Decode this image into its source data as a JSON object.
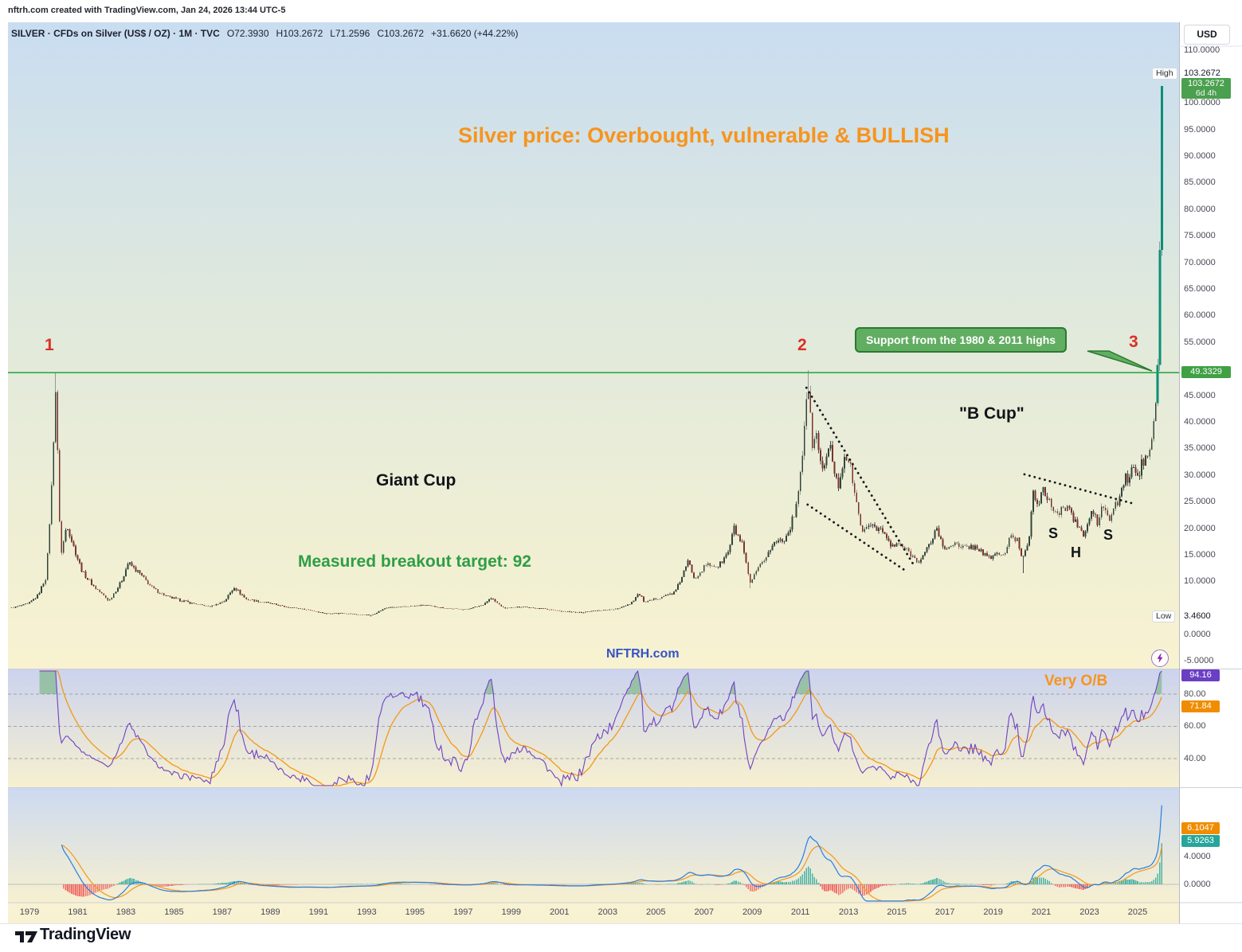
{
  "page": {
    "top_note": "nftrh.com created with TradingView.com, Jan 24, 2026 13:44 UTC-5",
    "watermark": "NFTRH.com",
    "logo_text": "TradingView"
  },
  "header": {
    "symbol_line": "SILVER · CFDs on Silver (US$ / OZ) · 1M · TVC",
    "ohlc": {
      "open": "O72.3930",
      "high": "H103.2672",
      "low": "L71.2596",
      "close": "C103.2672",
      "change": "+31.6620 (+44.22%)"
    }
  },
  "annotations": {
    "title": "Silver price: Overbought, vulnerable & BULLISH",
    "peak_1": "1",
    "peak_2": "2",
    "peak_3": "3",
    "callout": "Support from the 1980 & 2011 highs",
    "b_cup": "\"B Cup\"",
    "giant_cup": "Giant Cup",
    "target": "Measured breakout target: 92",
    "shs_left": "S",
    "shs_head": "H",
    "shs_right": "S",
    "very_ob": "Very O/B"
  },
  "price_axis": {
    "currency_button": "USD",
    "high_label": "High",
    "high_value": "103.2672",
    "last_price": "103.2672",
    "countdown": "6d 4h",
    "support_badge": "49.3329",
    "low_label": "Low",
    "low_value": "3.4600",
    "badge_color": "#4aa04e",
    "ticks": [
      {
        "value": 110,
        "label": "110.0000"
      },
      {
        "value": 100,
        "label": "100.0000"
      },
      {
        "value": 95,
        "label": "95.0000"
      },
      {
        "value": 90,
        "label": "90.0000"
      },
      {
        "value": 85,
        "label": "85.0000"
      },
      {
        "value": 80,
        "label": "80.0000"
      },
      {
        "value": 75,
        "label": "75.0000"
      },
      {
        "value": 70,
        "label": "70.0000"
      },
      {
        "value": 65,
        "label": "65.0000"
      },
      {
        "value": 60,
        "label": "60.0000"
      },
      {
        "value": 55,
        "label": "55.0000"
      },
      {
        "value": 45,
        "label": "45.0000"
      },
      {
        "value": 40,
        "label": "40.0000"
      },
      {
        "value": 35,
        "label": "35.0000"
      },
      {
        "value": 30,
        "label": "30.0000"
      },
      {
        "value": 25,
        "label": "25.0000"
      },
      {
        "value": 20,
        "label": "20.0000"
      },
      {
        "value": 15,
        "label": "15.0000"
      },
      {
        "value": 10,
        "label": "10.0000"
      },
      {
        "value": 0,
        "label": "0.0000"
      },
      {
        "value": -5,
        "label": "-5.0000"
      }
    ]
  },
  "rsi_pane": {
    "last_badge": "94.16",
    "last_badge_color": "#6a3fc3",
    "ma_badge": "71.84",
    "ma_badge_color": "#f08c00",
    "ticks": [
      {
        "value": 80,
        "label": "80.00"
      },
      {
        "value": 60,
        "label": "60.00"
      },
      {
        "value": 40,
        "label": "40.00"
      }
    ]
  },
  "macd_pane": {
    "badges": [
      {
        "text": "6.1047",
        "color": "#f08c00"
      },
      {
        "text": "5.9263",
        "color": "#26a69a"
      }
    ],
    "ticks": [
      {
        "value": 4,
        "label": "4.0000"
      },
      {
        "value": 0,
        "label": "0.0000"
      }
    ]
  },
  "time_axis": {
    "years": [
      1979,
      1981,
      1983,
      1985,
      1987,
      1989,
      1991,
      1993,
      1995,
      1997,
      1999,
      2001,
      2003,
      2005,
      2007,
      2009,
      2011,
      2013,
      2015,
      2017,
      2019,
      2021,
      2023,
      2025
    ]
  },
  "chart_data": {
    "type": "candlestick",
    "title": "SILVER · CFDs on Silver (US$ / OZ) · 1M · TVC",
    "x_range_years": [
      1978.25,
      2026.3
    ],
    "ylim": [
      -5,
      110
    ],
    "support_level": 49.3329,
    "measured_breakout_target": 92,
    "all_time_low": 3.46,
    "all_time_high": 103.2672,
    "last_bar": {
      "open": 72.393,
      "high": 103.2672,
      "low": 71.2596,
      "close": 103.2672,
      "change": 31.662,
      "change_pct": 44.22
    },
    "monthly_close_keyframes": [
      [
        1978.25,
        5.1
      ],
      [
        1978.7,
        5.6
      ],
      [
        1979.0,
        6.0
      ],
      [
        1979.35,
        7.4
      ],
      [
        1979.7,
        11.0
      ],
      [
        1979.92,
        28.0
      ],
      [
        1980.08,
        46.5
      ],
      [
        1980.3,
        14.5
      ],
      [
        1980.55,
        21.0
      ],
      [
        1980.8,
        17.0
      ],
      [
        1981.2,
        11.8
      ],
      [
        1981.7,
        9.0
      ],
      [
        1982.3,
        6.4
      ],
      [
        1982.8,
        9.9
      ],
      [
        1983.1,
        13.6
      ],
      [
        1983.6,
        11.4
      ],
      [
        1984.1,
        8.8
      ],
      [
        1984.7,
        7.2
      ],
      [
        1985.6,
        6.1
      ],
      [
        1986.5,
        5.3
      ],
      [
        1987.1,
        6.4
      ],
      [
        1987.5,
        9.0
      ],
      [
        1988.0,
        6.7
      ],
      [
        1988.7,
        6.2
      ],
      [
        1989.6,
        5.3
      ],
      [
        1990.5,
        4.8
      ],
      [
        1991.3,
        4.0
      ],
      [
        1992.0,
        4.1
      ],
      [
        1992.7,
        3.8
      ],
      [
        1993.2,
        3.7
      ],
      [
        1993.8,
        5.1
      ],
      [
        1994.5,
        5.3
      ],
      [
        1995.4,
        5.6
      ],
      [
        1996.3,
        5.0
      ],
      [
        1997.1,
        4.8
      ],
      [
        1997.8,
        5.6
      ],
      [
        1998.15,
        6.9
      ],
      [
        1998.7,
        5.0
      ],
      [
        1999.5,
        5.3
      ],
      [
        2000.4,
        4.9
      ],
      [
        2001.1,
        4.4
      ],
      [
        2001.9,
        4.2
      ],
      [
        2002.6,
        4.6
      ],
      [
        2003.3,
        4.8
      ],
      [
        2003.95,
        5.9
      ],
      [
        2004.3,
        7.8
      ],
      [
        2004.55,
        6.0
      ],
      [
        2005.1,
        7.0
      ],
      [
        2005.8,
        8.0
      ],
      [
        2006.35,
        13.8
      ],
      [
        2006.6,
        10.7
      ],
      [
        2007.1,
        13.2
      ],
      [
        2007.6,
        12.9
      ],
      [
        2008.0,
        15.5
      ],
      [
        2008.25,
        20.0
      ],
      [
        2008.6,
        16.8
      ],
      [
        2008.9,
        9.6
      ],
      [
        2009.4,
        13.5
      ],
      [
        2009.95,
        17.5
      ],
      [
        2010.4,
        18.3
      ],
      [
        2010.75,
        22.5
      ],
      [
        2011.0,
        30.5
      ],
      [
        2011.2,
        40.0
      ],
      [
        2011.33,
        47.5
      ],
      [
        2011.5,
        34.5
      ],
      [
        2011.65,
        39.5
      ],
      [
        2011.8,
        31.5
      ],
      [
        2012.05,
        33.0
      ],
      [
        2012.25,
        35.0
      ],
      [
        2012.55,
        27.5
      ],
      [
        2012.85,
        34.5
      ],
      [
        2013.1,
        31.0
      ],
      [
        2013.4,
        22.5
      ],
      [
        2013.65,
        19.2
      ],
      [
        2013.95,
        21.0
      ],
      [
        2014.4,
        19.5
      ],
      [
        2014.8,
        16.5
      ],
      [
        2015.1,
        17.0
      ],
      [
        2015.5,
        15.6
      ],
      [
        2015.8,
        14.1
      ],
      [
        2016.0,
        14.2
      ],
      [
        2016.35,
        16.8
      ],
      [
        2016.65,
        20.2
      ],
      [
        2016.95,
        16.0
      ],
      [
        2017.35,
        17.4
      ],
      [
        2017.65,
        16.2
      ],
      [
        2018.0,
        16.7
      ],
      [
        2018.4,
        16.3
      ],
      [
        2018.8,
        14.3
      ],
      [
        2019.1,
        15.3
      ],
      [
        2019.45,
        14.9
      ],
      [
        2019.7,
        18.3
      ],
      [
        2020.0,
        17.9
      ],
      [
        2020.22,
        14.2
      ],
      [
        2020.5,
        18.5
      ],
      [
        2020.65,
        28.2
      ],
      [
        2020.85,
        23.8
      ],
      [
        2021.05,
        27.0
      ],
      [
        2021.3,
        26.0
      ],
      [
        2021.55,
        22.4
      ],
      [
        2021.85,
        23.4
      ],
      [
        2022.1,
        24.6
      ],
      [
        2022.35,
        21.4
      ],
      [
        2022.6,
        20.2
      ],
      [
        2022.75,
        18.3
      ],
      [
        2022.95,
        21.3
      ],
      [
        2023.15,
        23.6
      ],
      [
        2023.35,
        20.4
      ],
      [
        2023.5,
        24.2
      ],
      [
        2023.7,
        23.0
      ],
      [
        2023.85,
        21.2
      ],
      [
        2024.0,
        24.1
      ],
      [
        2024.25,
        25.2
      ],
      [
        2024.45,
        29.8
      ],
      [
        2024.65,
        28.6
      ],
      [
        2024.85,
        32.6
      ],
      [
        2025.0,
        29.2
      ],
      [
        2025.15,
        31.8
      ],
      [
        2025.35,
        33.5
      ],
      [
        2025.55,
        36.8
      ],
      [
        2025.7,
        41.0
      ],
      [
        2025.8,
        47.5
      ],
      [
        2025.88,
        55.0
      ],
      [
        2025.917,
        72.393
      ],
      [
        2026.0,
        103.2672
      ]
    ],
    "wick_overrides": [
      {
        "year": 1980.083,
        "high": 49.45
      },
      {
        "year": 2011.333,
        "high": 49.82
      },
      {
        "year": 1993.167,
        "low": 3.46
      },
      {
        "year": 2008.917,
        "low": 8.79
      },
      {
        "year": 2020.25,
        "low": 11.62
      }
    ],
    "forced_closes": [
      [
        2025.917,
        72.393
      ],
      [
        2026.0,
        103.2672
      ]
    ],
    "dotted_trendlines": [
      {
        "x1": 2011.25,
        "y1": 46.5,
        "x2": 2015.75,
        "y2": 12.8
      },
      {
        "x1": 2011.3,
        "y1": 24.5,
        "x2": 2015.45,
        "y2": 11.8
      },
      {
        "x1": 2020.3,
        "y1": 30.2,
        "x2": 2024.9,
        "y2": 24.6
      }
    ],
    "indicators": {
      "rsi": {
        "length": 14,
        "ma_length": 14,
        "bands": [
          80,
          60,
          40
        ],
        "last": 94.16,
        "ma_last": 71.84
      },
      "macd": {
        "fast": 12,
        "slow": 26,
        "signal": 9,
        "last_values": [
          6.1047,
          5.9263
        ]
      }
    }
  }
}
